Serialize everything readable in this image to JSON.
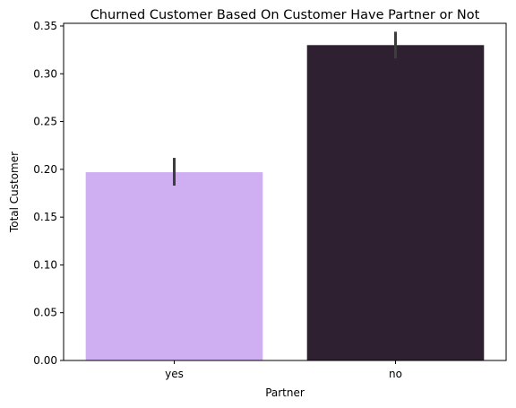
{
  "chart_data": {
    "type": "bar",
    "title": "Churned Customer Based On Customer Have Partner or Not",
    "xlabel": "Partner",
    "ylabel": "Total Customer",
    "categories": [
      "yes",
      "no"
    ],
    "values": [
      0.197,
      0.33
    ],
    "error_bars": [
      {
        "low": 0.183,
        "high": 0.212
      },
      {
        "low": 0.316,
        "high": 0.344
      }
    ],
    "colors": [
      "#cfaef2",
      "#2e1f31"
    ],
    "error_color": "#3d3d3d",
    "ylim": [
      0,
      0.3528
    ],
    "yticks": [
      "0.00",
      "0.05",
      "0.10",
      "0.15",
      "0.20",
      "0.25",
      "0.30",
      "0.35"
    ],
    "grid": false,
    "legend": "none"
  }
}
